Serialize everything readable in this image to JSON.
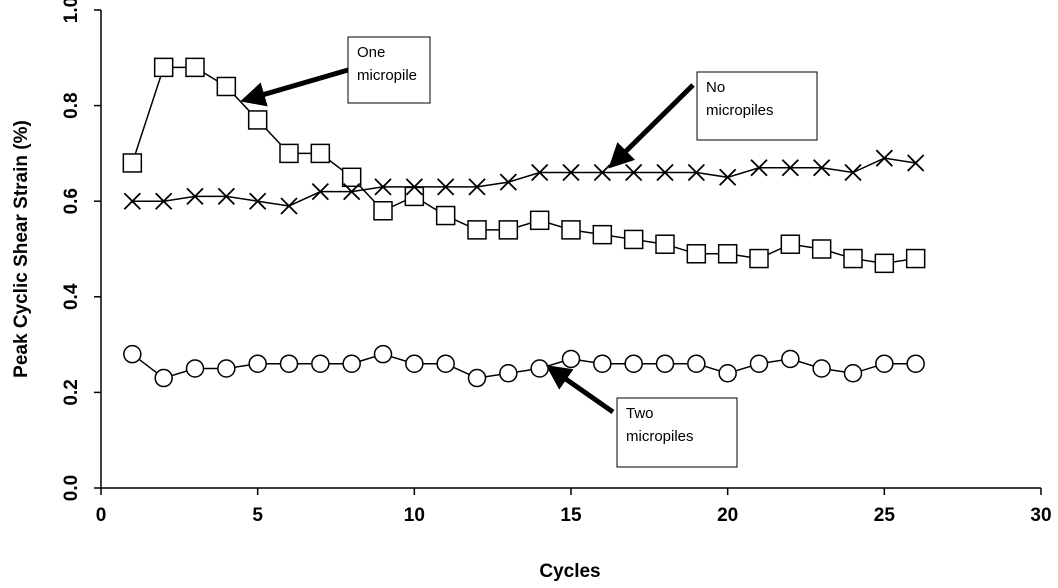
{
  "chart_data": {
    "type": "line",
    "x_label": "Cycles",
    "y_label": "Peak Cyclic Shear Strain (%)",
    "x": [
      1,
      2,
      3,
      4,
      5,
      6,
      7,
      8,
      9,
      10,
      11,
      12,
      13,
      14,
      15,
      16,
      17,
      18,
      19,
      20,
      21,
      22,
      23,
      24,
      25,
      26
    ],
    "series": [
      {
        "marker": "square",
        "color": "#000000",
        "values": [
          0.68,
          0.88,
          0.88,
          0.84,
          0.77,
          0.7,
          0.7,
          0.65,
          0.58,
          0.61,
          0.57,
          0.54,
          0.54,
          0.56,
          0.54,
          0.53,
          0.52,
          0.51,
          0.49,
          0.49,
          0.48,
          0.51,
          0.5,
          0.48,
          0.47,
          0.48
        ]
      },
      {
        "marker": "x",
        "color": "#000000",
        "values": [
          0.6,
          0.6,
          0.61,
          0.61,
          0.6,
          0.59,
          0.62,
          0.62,
          0.63,
          0.63,
          0.63,
          0.63,
          0.64,
          0.66,
          0.66,
          0.66,
          0.66,
          0.66,
          0.66,
          0.65,
          0.67,
          0.67,
          0.67,
          0.66,
          0.69,
          0.68
        ]
      },
      {
        "marker": "circle",
        "color": "#000000",
        "values": [
          0.28,
          0.23,
          0.25,
          0.25,
          0.26,
          0.26,
          0.26,
          0.26,
          0.28,
          0.26,
          0.26,
          0.23,
          0.24,
          0.25,
          0.27,
          0.26,
          0.26,
          0.26,
          0.26,
          0.24,
          0.26,
          0.27,
          0.25,
          0.24,
          0.26,
          0.26
        ]
      }
    ],
    "xlim": [
      0,
      30
    ],
    "xticks": [
      0,
      5,
      10,
      15,
      20,
      25,
      30
    ],
    "ylim": [
      0,
      1
    ],
    "yticks": [
      {
        "value": 0,
        "label": "0.0"
      },
      0.2,
      0.4,
      0.6,
      0.8,
      {
        "value": 1,
        "label": "1.0"
      }
    ],
    "grid": false,
    "annotations": [
      {
        "lines": [
          "One",
          "micropile"
        ]
      },
      {
        "lines": [
          "No",
          "micropiles"
        ]
      },
      {
        "lines": [
          "Two",
          "micropiles"
        ]
      }
    ]
  }
}
